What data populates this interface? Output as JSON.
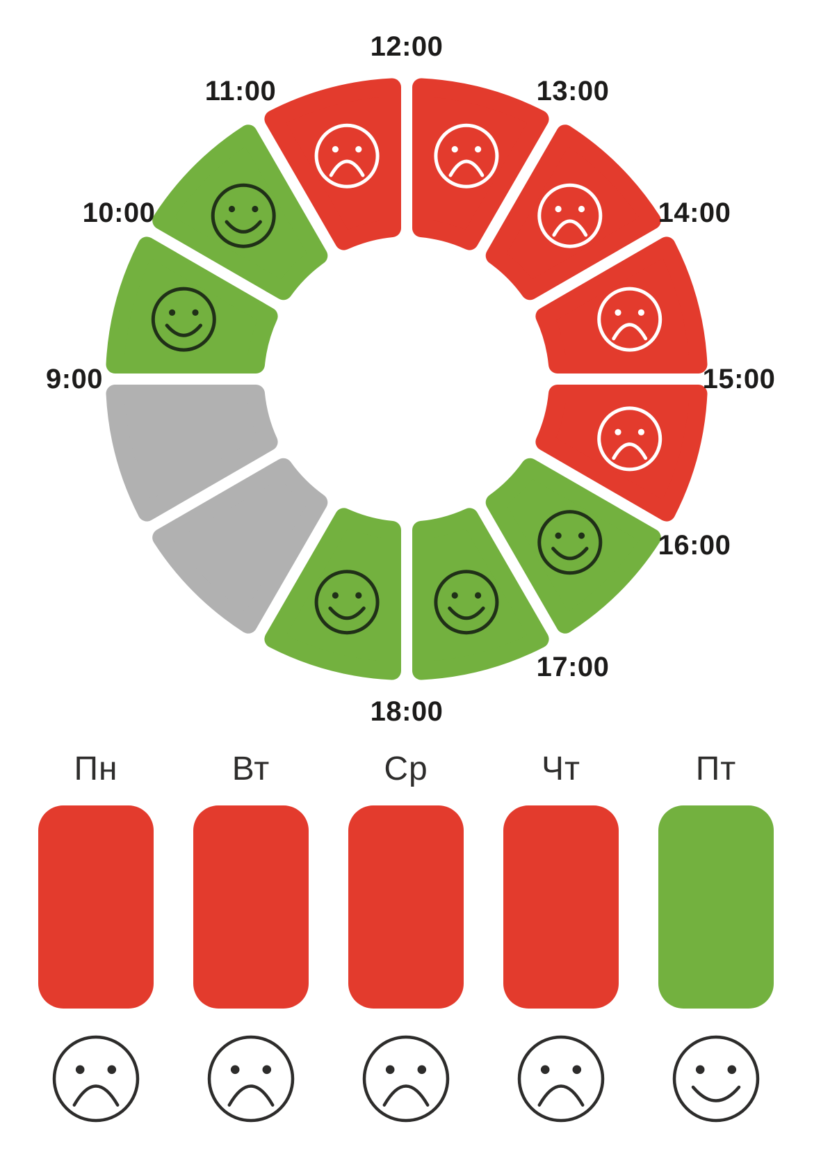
{
  "colors": {
    "red": "#e33b2d",
    "green": "#73b13f",
    "gray": "#b1b1b1",
    "hour_label": "#1c1b1a",
    "day_label": "#2e2d2c",
    "face_on_green": "#203018",
    "face_on_red": "#ffffff",
    "face_outline_bottom": "#2d2c2b",
    "background": "#ffffff"
  },
  "chart_data": {
    "type": "radial_mood_dial_with_weekday_row",
    "title": "",
    "hour_dial": {
      "description": "12 annular segments, 30 degrees each, clockwise; hour labels sit at segment start boundaries; gray segments are unlabeled off-hours",
      "segments": [
        {
          "label": "9:00",
          "start_angle_deg": 270,
          "mood": "happy",
          "color": "green"
        },
        {
          "label": "10:00",
          "start_angle_deg": 300,
          "mood": "happy",
          "color": "green"
        },
        {
          "label": "11:00",
          "start_angle_deg": 330,
          "mood": "sad",
          "color": "red"
        },
        {
          "label": "12:00",
          "start_angle_deg": 0,
          "mood": "sad",
          "color": "red"
        },
        {
          "label": "13:00",
          "start_angle_deg": 30,
          "mood": "sad",
          "color": "red"
        },
        {
          "label": "14:00",
          "start_angle_deg": 60,
          "mood": "sad",
          "color": "red"
        },
        {
          "label": "15:00",
          "start_angle_deg": 90,
          "mood": "sad",
          "color": "red"
        },
        {
          "label": "16:00",
          "start_angle_deg": 120,
          "mood": "happy",
          "color": "green"
        },
        {
          "label": "17:00",
          "start_angle_deg": 150,
          "mood": "happy",
          "color": "green"
        },
        {
          "label": "18:00",
          "start_angle_deg": 180,
          "mood": "happy",
          "color": "green"
        },
        {
          "label": "",
          "start_angle_deg": 210,
          "mood": "none",
          "color": "gray"
        },
        {
          "label": "",
          "start_angle_deg": 240,
          "mood": "none",
          "color": "gray"
        }
      ]
    },
    "weekday_row": {
      "days": [
        {
          "label": "Пн",
          "mood": "sad",
          "color": "red"
        },
        {
          "label": "Вт",
          "mood": "sad",
          "color": "red"
        },
        {
          "label": "Ср",
          "mood": "sad",
          "color": "red"
        },
        {
          "label": "Чт",
          "mood": "sad",
          "color": "red"
        },
        {
          "label": "Пт",
          "mood": "happy",
          "color": "green"
        }
      ]
    }
  }
}
